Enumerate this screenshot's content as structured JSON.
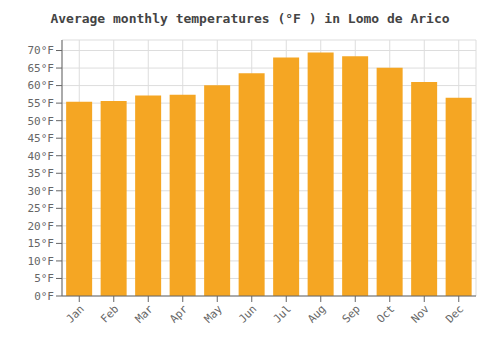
{
  "chart_data": {
    "type": "bar",
    "title": "Average monthly temperatures (°F ) in Lomo de Arico",
    "categories": [
      "Jan",
      "Feb",
      "Mar",
      "Apr",
      "May",
      "Jun",
      "Jul",
      "Aug",
      "Sep",
      "Oct",
      "Nov",
      "Dec"
    ],
    "values": [
      55.4,
      55.6,
      57.2,
      57.4,
      60.1,
      63.5,
      68.0,
      69.4,
      68.4,
      65.1,
      61.0,
      56.5
    ],
    "color": "#F5A623",
    "ylim": [
      0,
      73
    ],
    "yticks": [
      {
        "value": 0,
        "label": "0°F"
      },
      {
        "value": 5,
        "label": "5°F"
      },
      {
        "value": 10,
        "label": "10°F"
      },
      {
        "value": 15,
        "label": "15°F"
      },
      {
        "value": 20,
        "label": "20°F"
      },
      {
        "value": 25,
        "label": "25°F"
      },
      {
        "value": 30,
        "label": "30°F"
      },
      {
        "value": 35,
        "label": "35°F"
      },
      {
        "value": 40,
        "label": "40°F"
      },
      {
        "value": 45,
        "label": "45°F"
      },
      {
        "value": 50,
        "label": "50°F"
      },
      {
        "value": 55,
        "label": "55°F"
      },
      {
        "value": 60,
        "label": "60°F"
      },
      {
        "value": 65,
        "label": "65°F"
      },
      {
        "value": 70,
        "label": "70°F"
      }
    ],
    "grid": true
  }
}
